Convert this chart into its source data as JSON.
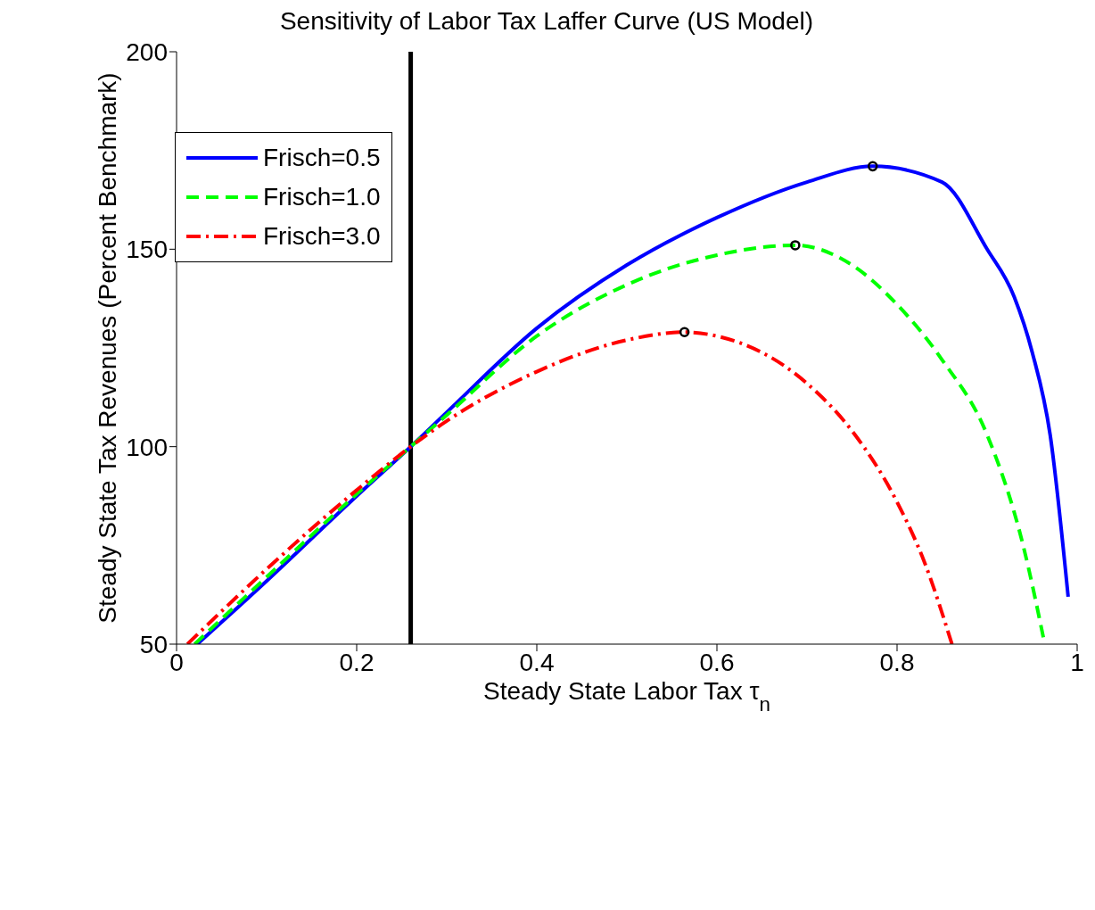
{
  "chart_data": {
    "type": "line",
    "title": "Sensitivity of Labor Tax Laffer Curve (US Model)",
    "xlabel": "Steady State Labor Tax τ$_{n}$",
    "ylabel": "Steady State Tax Revenues (Percent Benchmark)",
    "xlim": [
      0,
      1
    ],
    "xticks": [
      0,
      0.2,
      0.4,
      0.6,
      0.8,
      1
    ],
    "ylim": [
      50,
      200
    ],
    "yticks": [
      50,
      100,
      150,
      200
    ],
    "grid": false,
    "legend": "top left",
    "marker": "none",
    "series": [
      {
        "name": "Frisch=0.5",
        "color": "#0000ff",
        "line_style": "solid",
        "x": [
          0.023,
          0.1,
          0.2,
          0.26,
          0.3,
          0.4,
          0.5,
          0.6,
          0.7,
          0.773,
          0.85,
          0.9,
          0.93,
          0.95,
          0.97,
          0.99
        ],
        "values": [
          50,
          66,
          87.5,
          100,
          108.7,
          130,
          146,
          158,
          167,
          171,
          167,
          150,
          138,
          124,
          103,
          62
        ]
      },
      {
        "name": "Frisch=1.0",
        "color": "#00ff00",
        "line_style": "dashed",
        "x": [
          0.02,
          0.1,
          0.2,
          0.26,
          0.3,
          0.4,
          0.5,
          0.6,
          0.687,
          0.75,
          0.8,
          0.85,
          0.9,
          0.94,
          0.964
        ],
        "values": [
          50,
          67,
          88,
          100,
          108,
          128,
          141,
          148.5,
          151,
          146,
          136,
          122,
          103,
          75,
          50
        ]
      },
      {
        "name": "Frisch=3.0",
        "color": "#ff0000",
        "line_style": "dashdot",
        "x": [
          0.012,
          0.1,
          0.2,
          0.26,
          0.3,
          0.4,
          0.5,
          0.564,
          0.6,
          0.7,
          0.75,
          0.8,
          0.83,
          0.861
        ],
        "values": [
          50,
          69,
          89,
          100,
          106.5,
          119,
          127,
          129,
          128,
          116,
          104,
          86,
          71,
          50
        ]
      },
      {
        "type": "scatter",
        "marker": "circle",
        "color": "#000000",
        "x": [
          0.773,
          0.687,
          0.564
        ],
        "values": [
          171,
          151,
          129
        ]
      }
    ],
    "ref_lines": [
      {
        "axis": "x",
        "value": 0.26,
        "color": "#000000",
        "line_style": "solid"
      }
    ]
  }
}
